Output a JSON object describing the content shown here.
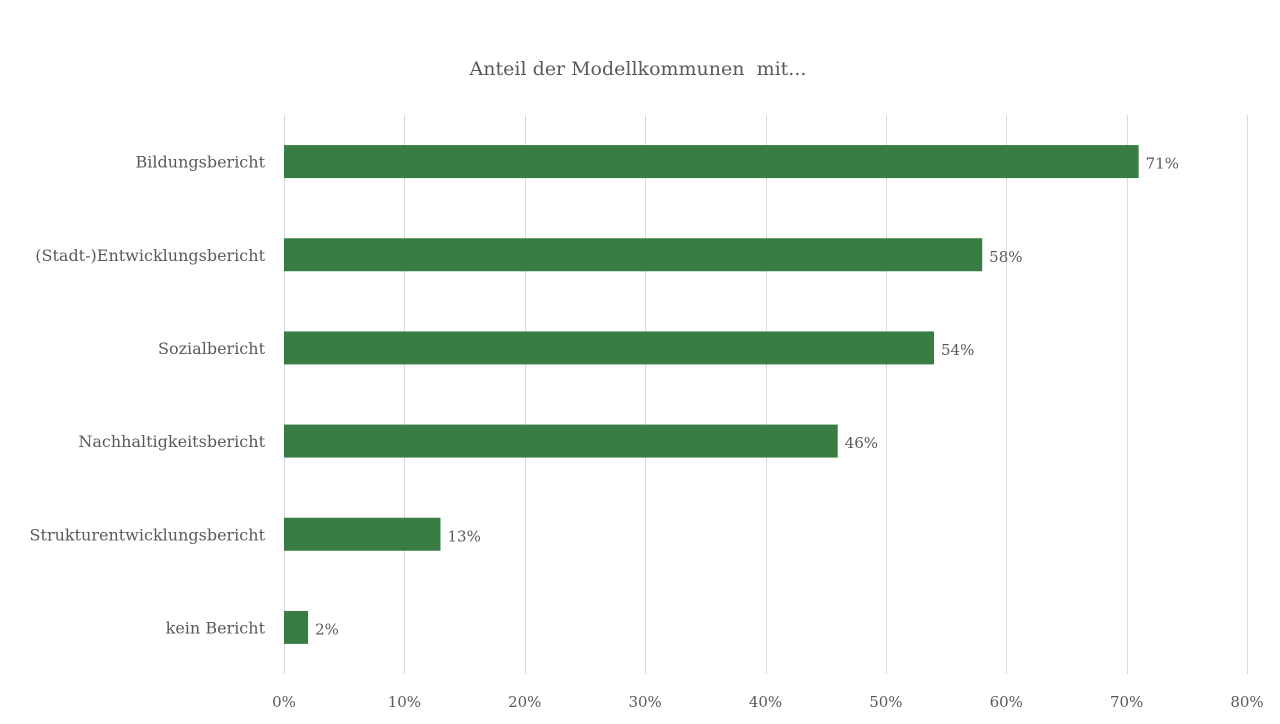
{
  "chart_data": {
    "type": "bar",
    "orientation": "horizontal",
    "title": "Anteil der Modellkommunen  mit...",
    "categories": [
      "Bildungsbericht",
      "(Stadt-)Entwicklungsbericht",
      "Sozialbericht",
      "Nachhaltigkeitsbericht",
      "Strukturentwicklungsbericht",
      "kein Bericht"
    ],
    "values": [
      71,
      58,
      54,
      46,
      13,
      2
    ],
    "data_labels": [
      "71%",
      "58%",
      "54%",
      "46%",
      "13%",
      "2%"
    ],
    "xlim": [
      0,
      80
    ],
    "x_ticks": [
      0,
      10,
      20,
      30,
      40,
      50,
      60,
      70,
      80
    ],
    "x_tick_labels": [
      "0%",
      "10%",
      "20%",
      "30%",
      "40%",
      "50%",
      "60%",
      "70%",
      "80%"
    ],
    "xlabel": "",
    "ylabel": "",
    "grid": "vertical",
    "legend": "none",
    "bar_color": "#3a7d44"
  }
}
